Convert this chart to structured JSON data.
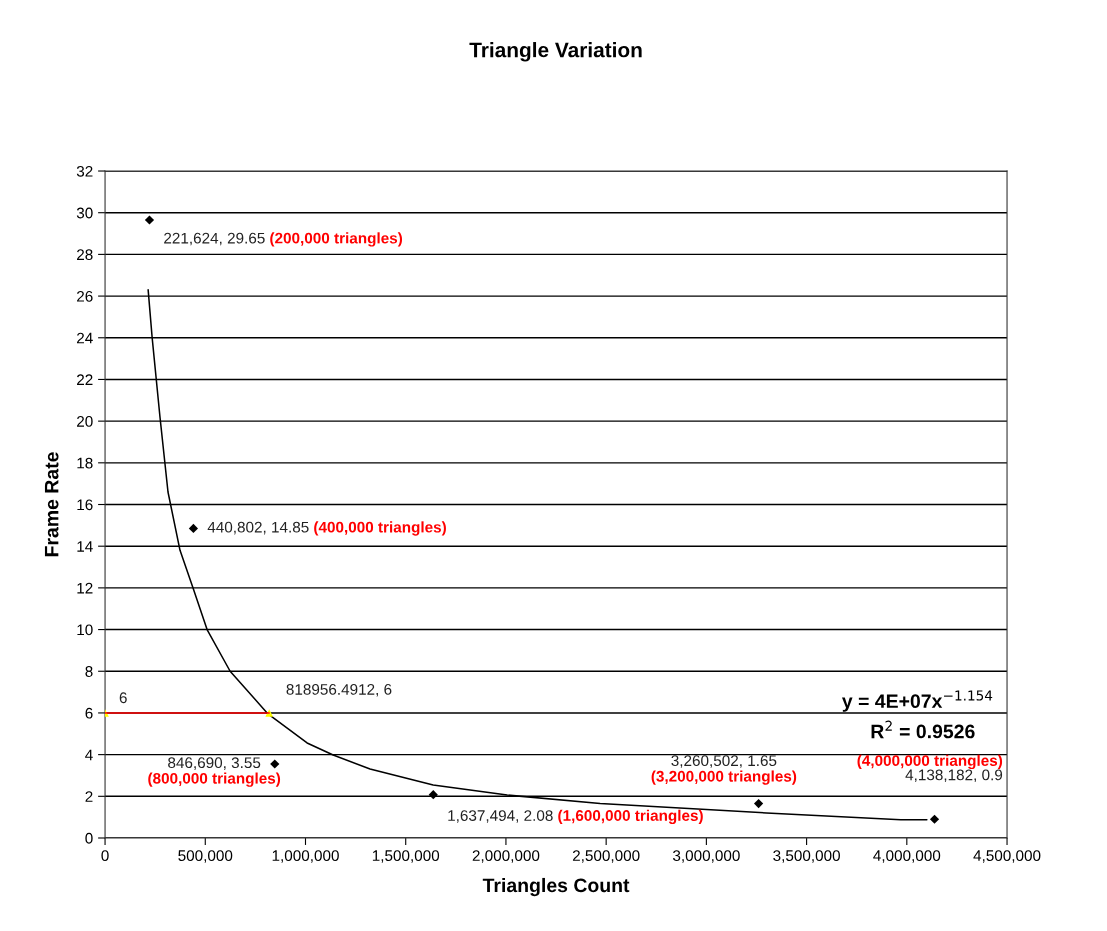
{
  "chart_data": {
    "type": "scatter",
    "title": "Triangle Variation",
    "xlabel": "Triangles Count",
    "ylabel": "Frame Rate",
    "xlim": [
      0,
      4500000
    ],
    "xticks": [
      {
        "value": 0,
        "label": "0"
      },
      {
        "value": 500000,
        "label": "500,000"
      },
      {
        "value": 1000000,
        "label": "1,000,000"
      },
      {
        "value": 1500000,
        "label": "1,500,000"
      },
      {
        "value": 2000000,
        "label": "2,000,000"
      },
      {
        "value": 2500000,
        "label": "2,500,000"
      },
      {
        "value": 3000000,
        "label": "3,000,000"
      },
      {
        "value": 3500000,
        "label": "3,500,000"
      },
      {
        "value": 4000000,
        "label": "4,000,000"
      },
      {
        "value": 4500000,
        "label": "4,500,000"
      }
    ],
    "ylim": [
      0,
      32
    ],
    "yticks": [
      0,
      2,
      4,
      6,
      8,
      10,
      12,
      14,
      16,
      18,
      20,
      22,
      24,
      26,
      28,
      30,
      32
    ],
    "grid": "y",
    "series": [
      {
        "type": "line",
        "color": "#000000",
        "marker": "none",
        "line_style": "solid",
        "x": [
          215000,
          235000,
          274000,
          314000,
          374000,
          439000,
          509000,
          624000,
          813000,
          1008000,
          1138000,
          1322000,
          1637000,
          2006000,
          2470000,
          3300000,
          3970000,
          4100000
        ],
        "values": [
          26.3,
          24.0,
          20.2,
          16.6,
          13.8,
          12.0,
          10.0,
          8.0,
          5.95,
          4.56,
          3.98,
          3.31,
          2.54,
          2.06,
          1.65,
          1.2,
          0.88,
          0.87
        ]
      },
      {
        "color": "#000000",
        "marker": "diamond",
        "x": [
          221624,
          440802,
          846690,
          1637494,
          3260502,
          4138182
        ],
        "values": [
          29.65,
          14.85,
          3.55,
          2.08,
          1.65,
          0.9
        ],
        "value_labels": [
          "221,624, 29.65",
          "440,802, 14.85",
          "846,690, 3.55",
          "1,637,494, 2.08",
          "3,260,502, 1.65",
          "4,138,182, 0.9"
        ]
      },
      {
        "type": "line",
        "color": "#ff0000",
        "marker": "none",
        "line_style": "solid",
        "x": [
          0,
          818956.4912
        ],
        "values": [
          6,
          6
        ]
      },
      {
        "color": "#ffff00",
        "marker": "triangle",
        "x": [
          0,
          818956.4912
        ],
        "values": [
          6,
          6
        ],
        "value_labels": [
          "6",
          "818956.4912, 6"
        ]
      }
    ],
    "annotations": [
      "(200,000 triangles)",
      "(400,000 triangles)",
      "(800,000 triangles)",
      "(1,600,000 triangles)",
      "(3,200,000 triangles)",
      "(4,000,000 triangles)",
      "y = 4E+07x$^{−1.154}$",
      "R$^{2}$ = 0.9526"
    ]
  }
}
